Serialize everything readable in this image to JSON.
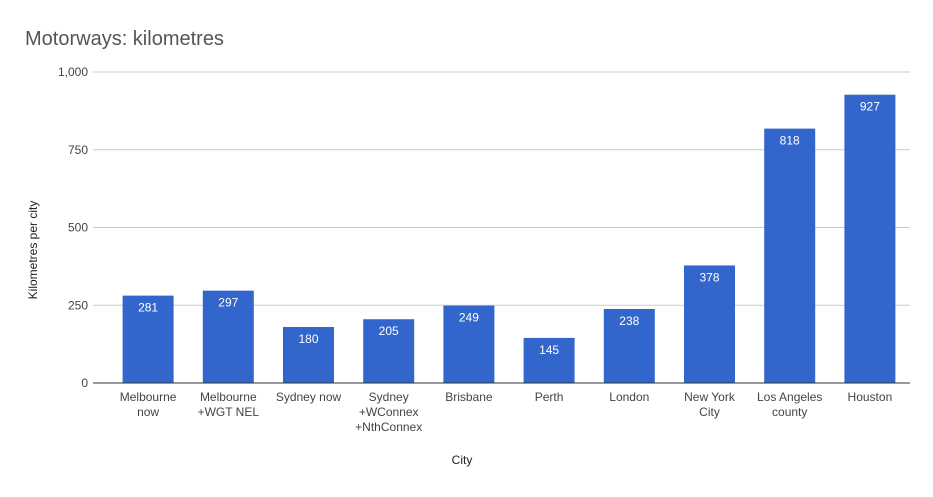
{
  "chart_data": {
    "type": "bar",
    "title": "Motorways: kilometres",
    "xlabel": "City",
    "ylabel": "Kilometres per city",
    "categories": [
      [
        "Melbourne",
        "now"
      ],
      [
        "Melbourne",
        "+WGT NEL"
      ],
      [
        "Sydney now"
      ],
      [
        "Sydney",
        "+WConnex",
        "+NthConnex"
      ],
      [
        "Brisbane"
      ],
      [
        "Perth"
      ],
      [
        "London"
      ],
      [
        "New York",
        "City"
      ],
      [
        "Los Angeles",
        "county"
      ],
      [
        "Houston"
      ]
    ],
    "values": [
      281,
      297,
      180,
      205,
      249,
      145,
      238,
      378,
      818,
      927
    ],
    "value_labels": [
      "281",
      "297",
      "180",
      "205",
      "249",
      "145",
      "238",
      "378",
      "818",
      "927"
    ],
    "ylim": [
      0,
      1000
    ],
    "yticks": [
      0,
      250,
      500,
      750,
      1000
    ],
    "ytick_labels": [
      "0",
      "250",
      "500",
      "750",
      "1,000"
    ],
    "grid": true,
    "legend": "none",
    "colors": {
      "bar": "#3366cc",
      "grid": "#cccccc",
      "axis": "#333333",
      "title": "#555555",
      "text": "#444444",
      "data_label": "#ffffff"
    }
  }
}
